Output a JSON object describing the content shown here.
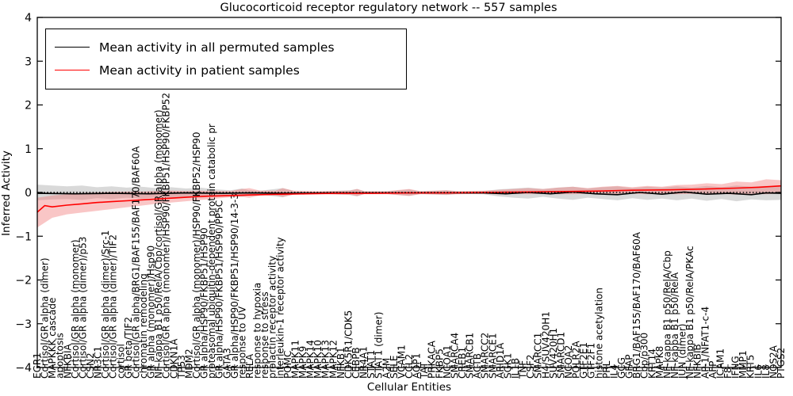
{
  "figure": {
    "title": "Glucocorticoid receptor regulatory network -- 557 samples",
    "xlabel": "Cellular Entities",
    "ylabel": "Inferred Activity",
    "sample_count": "557"
  },
  "legend": {
    "items": [
      {
        "label": "Mean activity in all permuted samples",
        "color": "#000000"
      },
      {
        "label": "Mean activity in patient samples",
        "color": "#ff0000"
      }
    ]
  },
  "chart_data": {
    "type": "line",
    "title": "Glucocorticoid receptor regulatory network -- 557 samples",
    "xlabel": "Cellular Entities",
    "ylabel": "Inferred Activity",
    "ylim": [
      -4,
      4
    ],
    "yticks": [
      -4,
      -3,
      -2,
      -1,
      0,
      1,
      2,
      3,
      4
    ],
    "grid": false,
    "legend_position": "upper left",
    "zero_line": {
      "style": "dotted",
      "color": "#000000",
      "y": 0
    },
    "colors": {
      "permuted_line": "#000000",
      "patient_line": "#ff0000",
      "permuted_band": "#aaaaaa",
      "patient_band": "#f07070"
    },
    "categories": [
      "EGR1",
      "Cortisol/GR alpha (dimer)",
      "MAPKKK cascade",
      "apoptosis",
      "NFKBIA",
      "Cortisol/GR alpha (monomer)",
      "Cortisol/GR alpha (dimer)/p53",
      "CSN2",
      "NR3C1",
      "Cortisol/GR alpha (dimer)/Src-1",
      "Cortisol/GR alpha (dimer)/TIF2",
      "cortisol",
      "GR beta/TIF2",
      "Cortisol/GR alpha/BRG1/BAF155/BAF170/BAF60A",
      "chromatin remodeling",
      "GR alpha (monomer)/Hsp90",
      "NF-kappa B1 p50/RelA/Cbp/cortisol/GR alpha (monomer)",
      "Cortisol/GR alpha (monomer)/HSP90/FKBP51/HSP90/FKBP52",
      "CDKN1A",
      "TP53",
      "MDM2",
      "Cortisol/GR alpha (monomer)/HSP90/FKBP52/HSP90",
      "GR alpha/HSP90/FKBP51/HSP90",
      "proteasomal ubiquitin-dependent protein catabolic pr",
      "GR alpha/HSP90/FKBP51/HSP90/PP5C",
      "GATA3",
      "GR alpha/HSP90/FKBP51/HSP90/14-3-3",
      "response to UV",
      "RELA",
      "response to hypoxia",
      "response to stress",
      "prolactin receptor activity",
      "interleukin-1 receptor activity",
      "POMC",
      "MAPK11",
      "MAPK9",
      "MAPK14",
      "MAPK10",
      "MAPK13",
      "MAPK12",
      "NFKB1",
      "CDK5R1/CDK5",
      "CEBPB",
      "NR4A1",
      "STAT1",
      "STAT1 (dimer)",
      "A2M",
      "SELE",
      "VCAM1",
      "CCL2",
      "AQP1",
      "TAT",
      "PRKACA",
      "FKBP5",
      "NCOA1",
      "SMARCA4",
      "CREB1",
      "SMARCB1",
      "ACTB",
      "SMARCC2",
      "SMARCE1",
      "ARID1A",
      "SGK1",
      "IL1B",
      "TNF",
      "CSF2",
      "SMARCC1",
      "H4/SUV420H1",
      "SUV420H1",
      "SMARCD1",
      "NCOA2",
      "POLR2A",
      "GTF2E1",
      "GTF2F1",
      "histone acetylation",
      "PRL",
      "IL4",
      "GCG",
      "GFAP",
      "BRG1/BAF155/BAF170/BAF60A",
      "Cbp/p300",
      "KRT14",
      "MAPK8",
      "NF-kappa B1 p50/RelA/Cbp",
      "NF-kappa B1 p50/RelA",
      "JUN (dimer)",
      "NF-kappa B1 p50/RelA/PKAc",
      "NFKBIB",
      "AP-1/NFAT1-c-4",
      "AFP",
      "ICAM1",
      "F8",
      "IFNG",
      "MMP1",
      "KRT5",
      "IL6",
      "IL8",
      "NOS2A",
      "PTGS2"
    ],
    "bands": [
      {
        "name": "permuted-confidence-band",
        "color": "#aaaaaa",
        "opacity": 0.45,
        "x": [
          0,
          0.02,
          0.04,
          0.06,
          0.08,
          0.1,
          0.12,
          0.14,
          0.16,
          0.18,
          0.2,
          0.22,
          0.24,
          0.26,
          0.275,
          0.285,
          0.3,
          0.32,
          0.33,
          0.345,
          0.38,
          0.42,
          0.43,
          0.44,
          0.47,
          0.5,
          0.515,
          0.55,
          0.565,
          0.6,
          0.62,
          0.64,
          0.66,
          0.68,
          0.7,
          0.72,
          0.74,
          0.76,
          0.78,
          0.8,
          0.82,
          0.84,
          0.86,
          0.88,
          0.9,
          0.92,
          0.94,
          0.96,
          0.98,
          1.0
        ],
        "hi": [
          0.18,
          0.16,
          0.14,
          0.16,
          0.12,
          0.14,
          0.11,
          0.13,
          0.1,
          0.12,
          0.09,
          0.11,
          0.07,
          0.05,
          0.09,
          0.05,
          0.04,
          0.08,
          0.1,
          0.03,
          0.02,
          0.05,
          0.08,
          0.02,
          0.02,
          0.07,
          0.02,
          0.05,
          0.02,
          0.03,
          0.07,
          0.09,
          0.11,
          0.08,
          0.11,
          0.13,
          0.09,
          0.12,
          0.14,
          0.1,
          0.13,
          0.11,
          0.14,
          0.11,
          0.15,
          0.12,
          0.16,
          0.13,
          0.15,
          0.14
        ],
        "lo": [
          -0.18,
          -0.16,
          -0.15,
          -0.17,
          -0.13,
          -0.15,
          -0.12,
          -0.14,
          -0.11,
          -0.13,
          -0.1,
          -0.12,
          -0.08,
          -0.06,
          -0.1,
          -0.06,
          -0.05,
          -0.09,
          -0.11,
          -0.04,
          -0.03,
          -0.06,
          -0.09,
          -0.03,
          -0.03,
          -0.08,
          -0.03,
          -0.06,
          -0.03,
          -0.04,
          -0.09,
          -0.12,
          -0.14,
          -0.1,
          -0.14,
          -0.17,
          -0.12,
          -0.15,
          -0.18,
          -0.13,
          -0.17,
          -0.14,
          -0.18,
          -0.14,
          -0.19,
          -0.15,
          -0.2,
          -0.16,
          -0.18,
          -0.17
        ]
      },
      {
        "name": "patient-confidence-band",
        "color": "#f07070",
        "opacity": 0.4,
        "x": [
          0,
          0.02,
          0.04,
          0.06,
          0.08,
          0.1,
          0.12,
          0.14,
          0.16,
          0.18,
          0.2,
          0.22,
          0.24,
          0.26,
          0.275,
          0.285,
          0.3,
          0.32,
          0.33,
          0.345,
          0.38,
          0.42,
          0.43,
          0.44,
          0.47,
          0.5,
          0.515,
          0.55,
          0.565,
          0.6,
          0.62,
          0.64,
          0.66,
          0.68,
          0.7,
          0.72,
          0.74,
          0.76,
          0.78,
          0.8,
          0.82,
          0.84,
          0.86,
          0.88,
          0.9,
          0.92,
          0.94,
          0.96,
          0.98,
          1.0
        ],
        "hi": [
          -0.12,
          -0.07,
          -0.04,
          -0.01,
          0.0,
          0.01,
          0.02,
          0.02,
          0.03,
          0.04,
          0.03,
          0.04,
          0.03,
          0.03,
          0.08,
          0.1,
          0.04,
          0.04,
          0.1,
          0.04,
          0.03,
          0.04,
          0.08,
          0.03,
          0.03,
          0.08,
          0.03,
          0.05,
          0.03,
          0.04,
          0.06,
          0.08,
          0.1,
          0.08,
          0.11,
          0.13,
          0.1,
          0.13,
          0.15,
          0.12,
          0.15,
          0.13,
          0.17,
          0.18,
          0.21,
          0.19,
          0.25,
          0.23,
          0.3,
          0.28
        ],
        "lo": [
          -0.8,
          -0.58,
          -0.5,
          -0.46,
          -0.42,
          -0.38,
          -0.34,
          -0.3,
          -0.26,
          -0.23,
          -0.2,
          -0.17,
          -0.14,
          -0.11,
          -0.1,
          -0.12,
          -0.07,
          -0.06,
          -0.1,
          -0.05,
          -0.04,
          -0.05,
          -0.08,
          -0.04,
          -0.04,
          -0.08,
          -0.04,
          -0.05,
          -0.04,
          -0.03,
          -0.04,
          -0.03,
          -0.04,
          -0.03,
          -0.04,
          -0.04,
          -0.03,
          -0.04,
          -0.04,
          -0.03,
          -0.04,
          -0.03,
          -0.04,
          -0.03,
          -0.04,
          -0.03,
          -0.05,
          -0.03,
          -0.04,
          -0.02
        ]
      }
    ],
    "series": [
      {
        "name": "Mean activity in all permuted samples",
        "color": "#000000",
        "x": [
          0,
          0.05,
          0.1,
          0.15,
          0.2,
          0.25,
          0.285,
          0.33,
          0.4,
          0.5,
          0.6,
          0.63,
          0.66,
          0.69,
          0.72,
          0.75,
          0.78,
          0.81,
          0.84,
          0.87,
          0.9,
          0.93,
          0.96,
          0.98,
          1.0
        ],
        "y": [
          -0.02,
          -0.03,
          -0.02,
          -0.03,
          -0.01,
          -0.02,
          -0.01,
          -0.02,
          -0.01,
          -0.01,
          -0.01,
          -0.03,
          0.0,
          -0.03,
          0.01,
          -0.03,
          -0.05,
          0.0,
          -0.04,
          0.01,
          -0.04,
          -0.02,
          -0.05,
          -0.01,
          -0.02
        ]
      },
      {
        "name": "Mean activity in patient samples",
        "color": "#ff0000",
        "x": [
          0,
          0.01,
          0.02,
          0.04,
          0.06,
          0.08,
          0.1,
          0.12,
          0.14,
          0.16,
          0.18,
          0.2,
          0.22,
          0.24,
          0.26,
          0.28,
          0.3,
          0.33,
          0.36,
          0.4,
          0.45,
          0.5,
          0.55,
          0.6,
          0.65,
          0.7,
          0.75,
          0.8,
          0.85,
          0.9,
          0.94,
          0.97,
          1.0
        ],
        "y": [
          -0.45,
          -0.3,
          -0.33,
          -0.29,
          -0.26,
          -0.23,
          -0.21,
          -0.19,
          -0.17,
          -0.15,
          -0.13,
          -0.11,
          -0.09,
          -0.08,
          -0.07,
          -0.06,
          -0.05,
          -0.04,
          -0.03,
          -0.02,
          -0.02,
          -0.01,
          -0.01,
          0.0,
          0.01,
          0.02,
          0.03,
          0.05,
          0.06,
          0.08,
          0.1,
          0.12,
          0.15
        ]
      }
    ]
  }
}
